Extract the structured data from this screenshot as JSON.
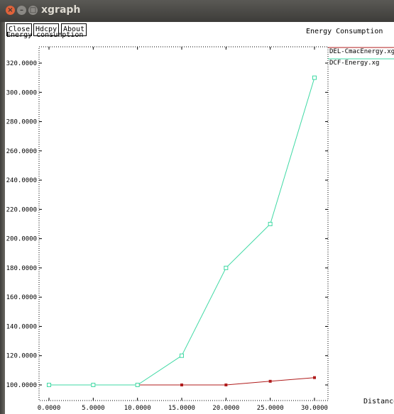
{
  "window": {
    "title": "xgraph"
  },
  "buttons": {
    "close": "Close",
    "hdcpy": "Hdcpy",
    "about": "About"
  },
  "plot": {
    "title": "Energy Consumption",
    "ylabel": "Energy consumption",
    "xlabel": "Distance"
  },
  "colors": {
    "series_red": "#b01c1c",
    "series_green": "#3fd9a4",
    "titlebar": "#4a4945"
  },
  "chart_data": {
    "type": "line",
    "xlabel": "Distance",
    "ylabel": "Energy consumption",
    "title": "Energy Consumption",
    "xlim": [
      0,
      30
    ],
    "ylim": [
      100,
      320
    ],
    "x_ticks": [
      "0.0000",
      "5.0000",
      "10.0000",
      "15.0000",
      "20.0000",
      "25.0000",
      "30.0000"
    ],
    "y_ticks": [
      "100.0000",
      "120.0000",
      "140.0000",
      "160.0000",
      "180.0000",
      "200.0000",
      "220.0000",
      "240.0000",
      "260.0000",
      "280.0000",
      "300.0000",
      "320.0000"
    ],
    "grid": false,
    "legend_position": "top-right",
    "series": [
      {
        "name": "DEL-CmacEnergy.xg",
        "color": "#b01c1c",
        "marker": "filled-square",
        "x": [
          0,
          5,
          10,
          15,
          20,
          25,
          30
        ],
        "y": [
          100,
          100,
          100,
          100,
          100,
          102.5,
          105
        ]
      },
      {
        "name": "DCF-Energy.xg",
        "color": "#3fd9a4",
        "marker": "hollow-square",
        "x": [
          0,
          5,
          10,
          15,
          20,
          25,
          30
        ],
        "y": [
          100,
          100,
          100,
          120,
          180,
          210,
          310
        ]
      }
    ]
  }
}
